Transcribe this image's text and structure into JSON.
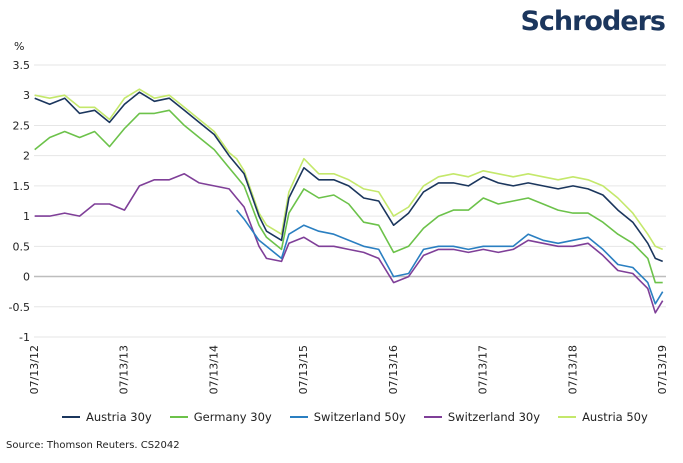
{
  "logo": "Schroders",
  "source": "Source: Thomson Reuters. CS2042",
  "chart_data": {
    "type": "line",
    "ylabel": "%",
    "ylim": [
      -1,
      3.5
    ],
    "yticks": [
      "3.5",
      "3",
      "2.5",
      "2",
      "1.5",
      "1",
      "0.5",
      "0",
      "-0.5",
      "-1"
    ],
    "xticks": [
      "07/13/12",
      "07/13/13",
      "07/13/14",
      "07/13/15",
      "07/13/16",
      "07/13/17",
      "07/13/18",
      "07/13/19"
    ],
    "grid": true,
    "legend": "bottom",
    "x": [
      "2012-07",
      "2012-09",
      "2012-11",
      "2013-01",
      "2013-03",
      "2013-05",
      "2013-07",
      "2013-09",
      "2013-11",
      "2014-01",
      "2014-03",
      "2014-05",
      "2014-07",
      "2014-09",
      "2014-10",
      "2014-11",
      "2015-01",
      "2015-02",
      "2015-04",
      "2015-05",
      "2015-07",
      "2015-09",
      "2015-11",
      "2016-01",
      "2016-03",
      "2016-05",
      "2016-07",
      "2016-09",
      "2016-11",
      "2017-01",
      "2017-03",
      "2017-05",
      "2017-07",
      "2017-09",
      "2017-11",
      "2018-01",
      "2018-03",
      "2018-05",
      "2018-07",
      "2018-09",
      "2018-11",
      "2019-01",
      "2019-03",
      "2019-05",
      "2019-06",
      "2019-07"
    ],
    "series": [
      {
        "name": "Austria 30y",
        "color": "#1b365d",
        "values": [
          2.95,
          2.85,
          2.95,
          2.7,
          2.75,
          2.55,
          2.85,
          3.05,
          2.9,
          2.95,
          2.75,
          2.55,
          2.35,
          2.0,
          1.85,
          1.7,
          1.0,
          0.75,
          0.6,
          1.3,
          1.8,
          1.6,
          1.6,
          1.5,
          1.3,
          1.25,
          0.85,
          1.05,
          1.4,
          1.55,
          1.55,
          1.5,
          1.65,
          1.55,
          1.5,
          1.55,
          1.5,
          1.45,
          1.5,
          1.45,
          1.35,
          1.1,
          0.9,
          0.55,
          0.3,
          0.25
        ]
      },
      {
        "name": "Germany 30y",
        "color": "#6cc24a",
        "values": [
          2.1,
          2.3,
          2.4,
          2.3,
          2.4,
          2.15,
          2.45,
          2.7,
          2.7,
          2.75,
          2.5,
          2.3,
          2.1,
          1.8,
          1.65,
          1.5,
          0.85,
          0.65,
          0.45,
          1.05,
          1.45,
          1.3,
          1.35,
          1.2,
          0.9,
          0.85,
          0.4,
          0.5,
          0.8,
          1.0,
          1.1,
          1.1,
          1.3,
          1.2,
          1.25,
          1.3,
          1.2,
          1.1,
          1.05,
          1.05,
          0.9,
          0.7,
          0.55,
          0.3,
          -0.1,
          -0.1
        ]
      },
      {
        "name": "Switzerland 50y",
        "color": "#2a7fc1",
        "values": [
          null,
          null,
          null,
          null,
          null,
          null,
          null,
          null,
          null,
          null,
          null,
          null,
          null,
          null,
          1.1,
          0.95,
          0.6,
          0.5,
          0.3,
          0.7,
          0.85,
          0.75,
          0.7,
          0.6,
          0.5,
          0.45,
          0.0,
          0.05,
          0.45,
          0.5,
          0.5,
          0.45,
          0.5,
          0.5,
          0.5,
          0.7,
          0.6,
          0.55,
          0.6,
          0.65,
          0.45,
          0.2,
          0.15,
          -0.1,
          -0.45,
          -0.25
        ]
      },
      {
        "name": "Switzerland 30y",
        "color": "#7f3f98",
        "values": [
          1.0,
          1.0,
          1.05,
          1.0,
          1.2,
          1.2,
          1.1,
          1.5,
          1.6,
          1.6,
          1.7,
          1.55,
          1.5,
          1.45,
          1.3,
          1.15,
          0.5,
          0.3,
          0.25,
          0.55,
          0.65,
          0.5,
          0.5,
          0.45,
          0.4,
          0.3,
          -0.1,
          0.0,
          0.35,
          0.45,
          0.45,
          0.4,
          0.45,
          0.4,
          0.45,
          0.6,
          0.55,
          0.5,
          0.5,
          0.55,
          0.35,
          0.1,
          0.05,
          -0.2,
          -0.6,
          -0.4
        ]
      },
      {
        "name": "Austria 50y",
        "color": "#c4e86b",
        "values": [
          3.0,
          2.95,
          3.0,
          2.8,
          2.8,
          2.6,
          2.95,
          3.1,
          2.95,
          3.0,
          2.8,
          2.6,
          2.4,
          2.05,
          1.95,
          1.75,
          1.05,
          0.85,
          0.7,
          1.4,
          1.95,
          1.7,
          1.7,
          1.6,
          1.45,
          1.4,
          1.0,
          1.15,
          1.5,
          1.65,
          1.7,
          1.65,
          1.75,
          1.7,
          1.65,
          1.7,
          1.65,
          1.6,
          1.65,
          1.6,
          1.5,
          1.3,
          1.05,
          0.7,
          0.5,
          0.45
        ]
      }
    ]
  }
}
